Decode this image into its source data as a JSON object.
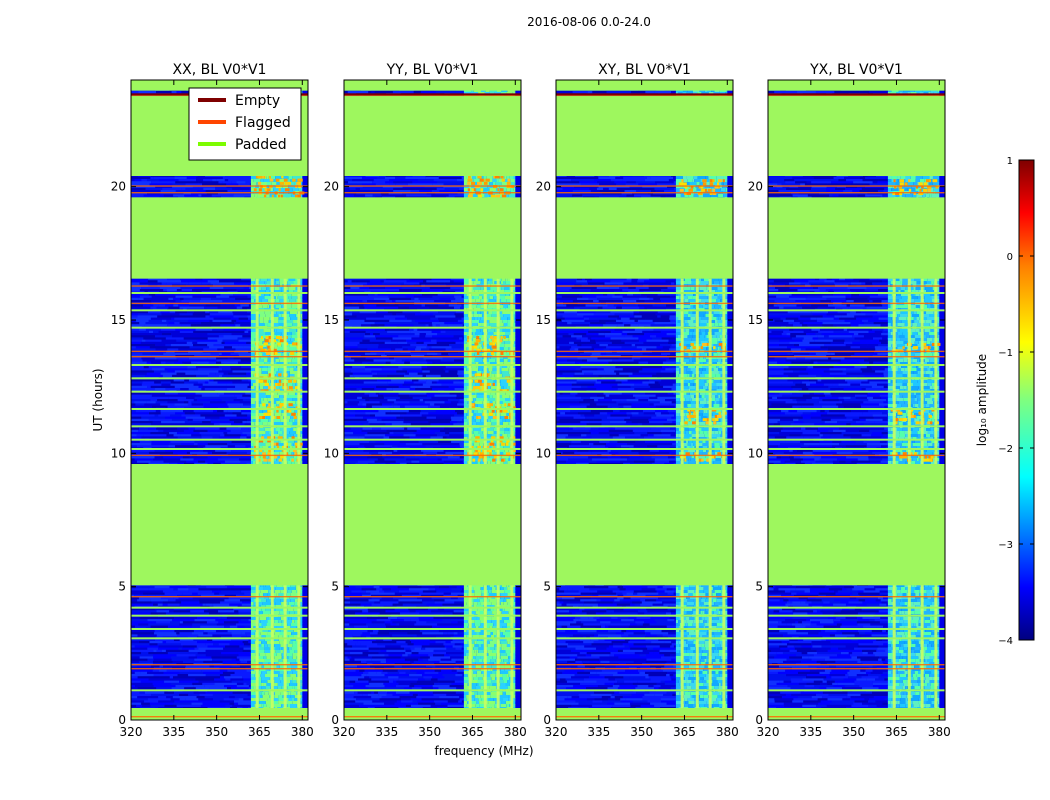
{
  "chart_data": {
    "type": "heatmap",
    "suptitle": "2016-08-06 0.0-24.0",
    "xlabel": "frequency (MHz)",
    "ylabel": "UT (hours)",
    "xlim": [
      320,
      382
    ],
    "ylim": [
      0,
      24
    ],
    "xticks": [
      "320",
      "335",
      "350",
      "365",
      "380"
    ],
    "yticks": [
      "0",
      "5",
      "10",
      "15",
      "20"
    ],
    "panels": [
      {
        "title": "XX, BL V0*V1",
        "band_level": "high"
      },
      {
        "title": "YY, BL V0*V1",
        "band_level": "high"
      },
      {
        "title": "XY, BL V0*V1",
        "band_level": "mid"
      },
      {
        "title": "YX, BL V0*V1",
        "band_level": "mid"
      }
    ],
    "legend": {
      "location": "top-right of first panel",
      "entries": [
        {
          "label": "Empty",
          "color": "#7f0000"
        },
        {
          "label": "Flagged",
          "color": "#ff4500"
        },
        {
          "label": "Padded",
          "color": "#7cfc00"
        }
      ]
    },
    "colorbar": {
      "label": "log₁₀ amplitude",
      "range": [
        -4,
        1
      ],
      "ticks": [
        "1",
        "0",
        "−1",
        "−2",
        "−3",
        "−4"
      ],
      "colormap": "jet"
    },
    "padded_ut_ranges": [
      [
        0,
        0.45
      ],
      [
        5.05,
        9.6
      ],
      [
        16.55,
        19.6
      ],
      [
        20.4,
        23.4
      ],
      [
        23.6,
        24
      ]
    ],
    "flagged_ut": [
      0.15,
      1.95,
      2.1,
      4.65,
      9.95,
      13.65,
      13.85,
      15.65,
      16.3,
      19.8,
      20.05,
      23.45
    ],
    "bright_band_mhz": [
      362,
      380
    ],
    "rfi_channels_mhz": [
      364.2,
      369.5,
      374.0,
      378.8
    ],
    "colors": {
      "padded": "#9ef75e",
      "background": "#ffffff"
    }
  }
}
